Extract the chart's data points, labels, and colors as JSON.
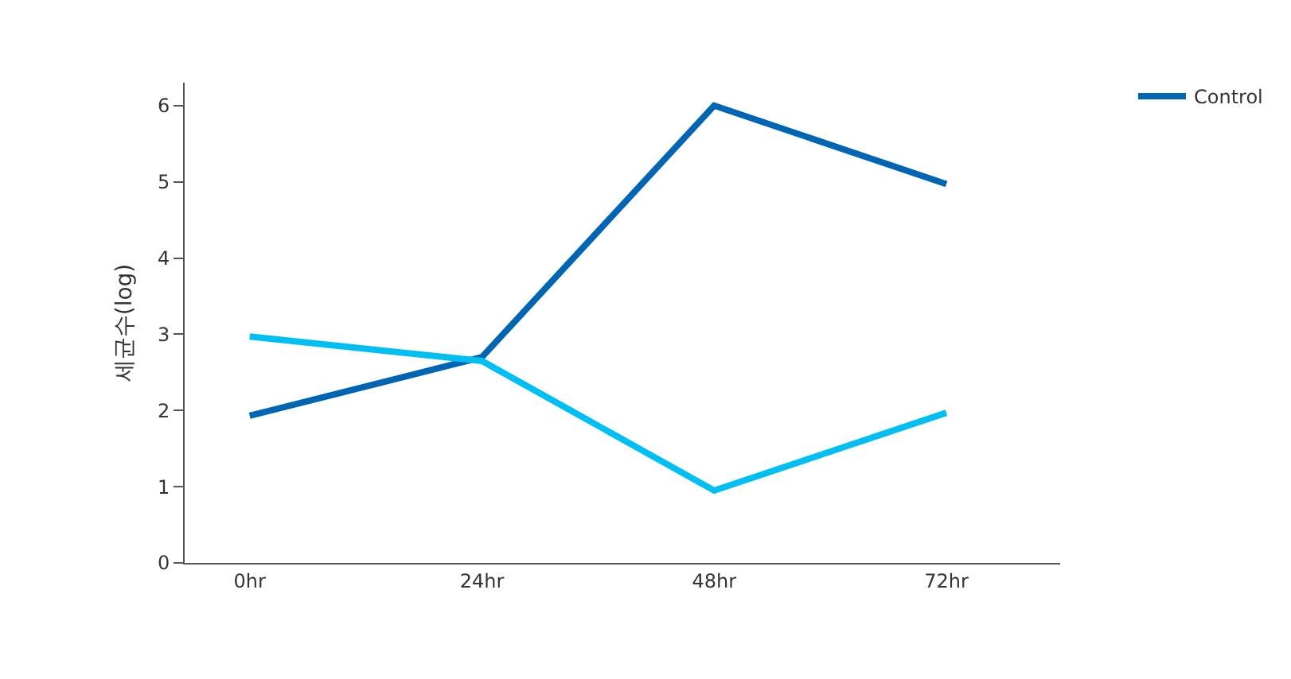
{
  "chart_data": {
    "type": "line",
    "ylabel": "세균수(log)",
    "categories": [
      "0hr",
      "24hr",
      "48hr",
      "72hr"
    ],
    "series": [
      {
        "name": "Control",
        "color": "#0066b3",
        "values": [
          1.93,
          2.7,
          6.0,
          4.97
        ]
      },
      {
        "color": "#00bff3",
        "values": [
          2.97,
          2.65,
          0.95,
          1.97
        ]
      }
    ],
    "ylim": [
      0,
      6.3
    ],
    "yticks": [
      0,
      1,
      2,
      3,
      4,
      5,
      6
    ],
    "legend": "top right",
    "marker": "none",
    "line_style": "solid"
  }
}
